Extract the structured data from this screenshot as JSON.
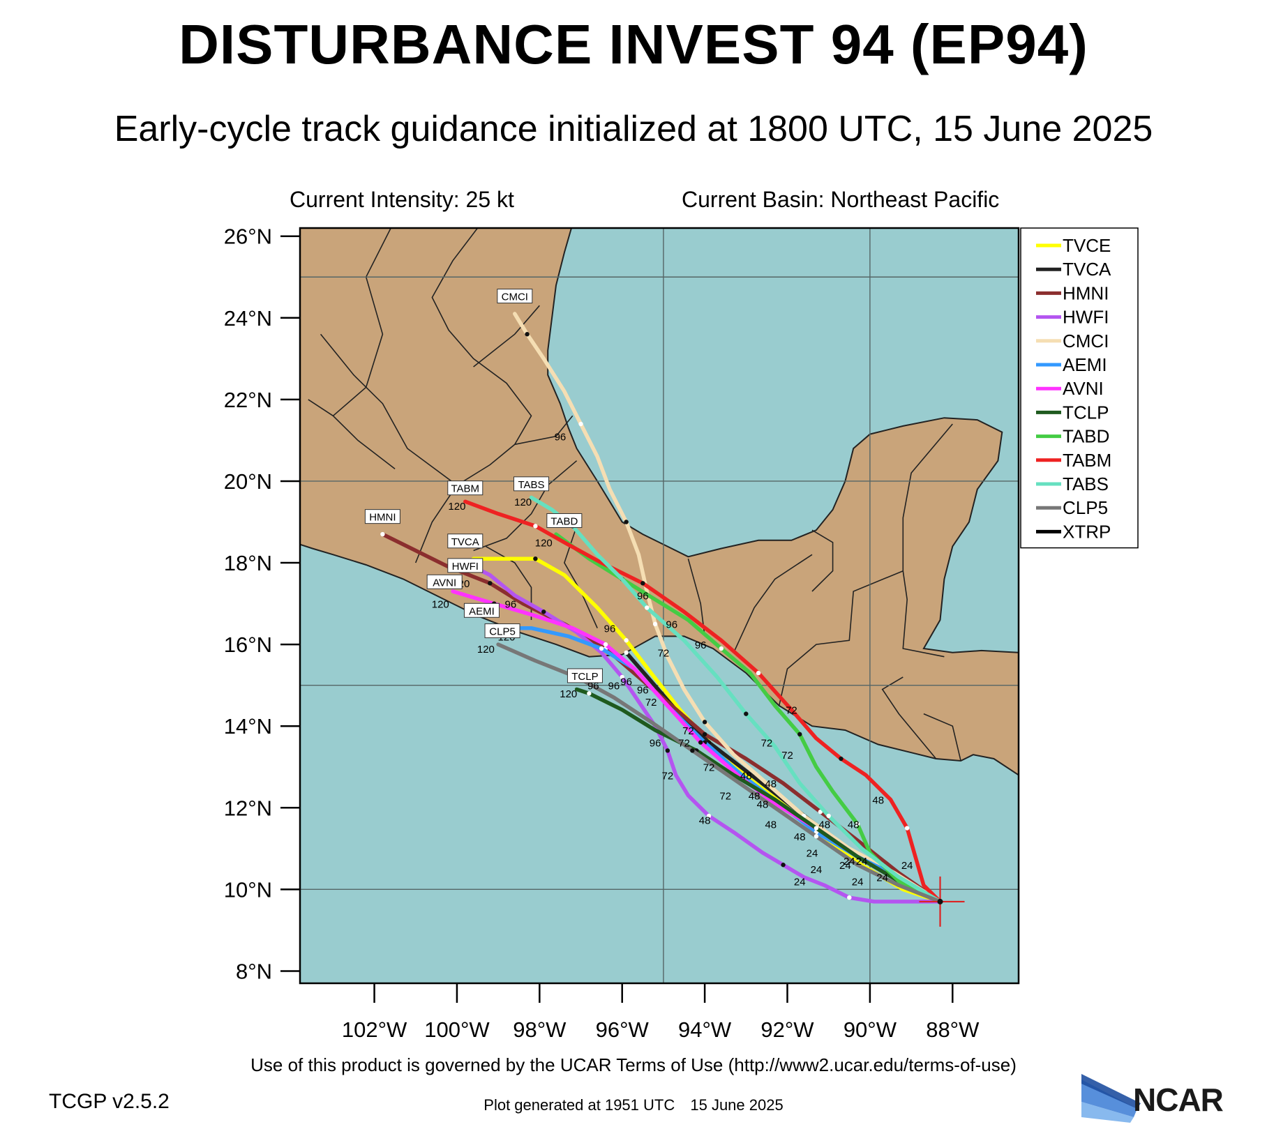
{
  "title": "DISTURBANCE INVEST 94 (EP94)",
  "subtitle": "Early-cycle track guidance initialized at 1800 UTC, 15 June 2025",
  "current_intensity": "Current Intensity: 25 kt",
  "current_basin": "Current Basin: Northeast Pacific",
  "terms": "Use of this product is governed by the UCAR Terms of Use (http://www2.ucar.edu/terms-of-use)",
  "version": "TCGP v2.5.2",
  "generated_time": "Plot generated at 1951 UTC",
  "generated_date": "15 June 2025",
  "logo_text": "NCAR",
  "colors": {
    "ocean": "#99cccf",
    "land": "#c9a47a",
    "border": "#222222",
    "grid": "#556666"
  },
  "axes": {
    "lon_min": -103.8,
    "lon_max": -86.4,
    "lat_min": 7.7,
    "lat_max": 26.2,
    "x_ticks": [
      -102,
      -100,
      -98,
      -96,
      -94,
      -92,
      -90,
      -88
    ],
    "x_tick_labels": [
      "102°W",
      "100°W",
      "98°W",
      "96°W",
      "94°W",
      "92°W",
      "90°W",
      "88°W"
    ],
    "y_ticks": [
      8,
      10,
      12,
      14,
      16,
      18,
      20,
      22,
      24,
      26
    ],
    "y_tick_labels": [
      "8°N",
      "10°N",
      "12°N",
      "14°N",
      "16°N",
      "18°N",
      "20°N",
      "22°N",
      "24°N",
      "26°N"
    ],
    "grid_lons": [
      -95,
      -90
    ],
    "grid_lats": [
      10,
      15,
      20,
      25
    ]
  },
  "legend": [
    {
      "label": "TVCE",
      "color": "#ffff00"
    },
    {
      "label": "TVCA",
      "color": "#222222"
    },
    {
      "label": "HMNI",
      "color": "#8b2e2e"
    },
    {
      "label": "HWFI",
      "color": "#b455f0"
    },
    {
      "label": "CMCI",
      "color": "#f5deb3"
    },
    {
      "label": "AEMI",
      "color": "#3399ff"
    },
    {
      "label": "AVNI",
      "color": "#ff33ff"
    },
    {
      "label": "TCLP",
      "color": "#1e5a1e"
    },
    {
      "label": "TABD",
      "color": "#44cc44"
    },
    {
      "label": "TABM",
      "color": "#ee2222"
    },
    {
      "label": "TABS",
      "color": "#66e0c0"
    },
    {
      "label": "CLP5",
      "color": "#777777"
    },
    {
      "label": "XTRP",
      "color": "#000000"
    }
  ],
  "initial_position": {
    "lon": -88.3,
    "lat": 9.7
  },
  "chart_data": {
    "type": "map",
    "tracks": [
      {
        "name": "TVCE",
        "color": "#ffff00",
        "points": [
          [
            -88.3,
            9.7
          ],
          [
            -89.2,
            10.0
          ],
          [
            -90.2,
            10.6
          ],
          [
            -91.2,
            11.3
          ],
          [
            -92.0,
            12.0
          ],
          [
            -92.9,
            12.7
          ],
          [
            -93.8,
            13.5
          ],
          [
            -94.6,
            14.4
          ],
          [
            -95.3,
            15.3
          ],
          [
            -95.9,
            16.1
          ],
          [
            -96.6,
            16.9
          ],
          [
            -97.4,
            17.7
          ],
          [
            -98.1,
            18.1
          ],
          [
            -99.6,
            18.1
          ]
        ]
      },
      {
        "name": "TVCA",
        "color": "#222222",
        "points": [
          [
            -88.3,
            9.7
          ],
          [
            -89.3,
            10.2
          ],
          [
            -90.3,
            10.8
          ],
          [
            -91.2,
            11.5
          ],
          [
            -92.1,
            12.2
          ],
          [
            -93.0,
            12.9
          ],
          [
            -93.9,
            13.6
          ],
          [
            -94.7,
            14.4
          ],
          [
            -95.3,
            15.1
          ],
          [
            -95.9,
            15.8
          ]
        ]
      },
      {
        "name": "HMNI",
        "color": "#8b2e2e",
        "points": [
          [
            -88.3,
            9.7
          ],
          [
            -89.3,
            10.4
          ],
          [
            -90.3,
            11.2
          ],
          [
            -91.2,
            11.9
          ],
          [
            -92.1,
            12.6
          ],
          [
            -93.0,
            13.2
          ],
          [
            -94.0,
            13.8
          ],
          [
            -94.8,
            14.5
          ],
          [
            -95.6,
            15.2
          ],
          [
            -96.4,
            15.9
          ],
          [
            -97.4,
            16.5
          ],
          [
            -98.4,
            17.0
          ],
          [
            -99.2,
            17.5
          ],
          [
            -100.2,
            17.9
          ],
          [
            -101.2,
            18.4
          ],
          [
            -101.8,
            18.7
          ]
        ]
      },
      {
        "name": "HWFI",
        "color": "#b455f0",
        "points": [
          [
            -88.3,
            9.7
          ],
          [
            -89.0,
            9.7
          ],
          [
            -89.9,
            9.7
          ],
          [
            -90.5,
            9.8
          ],
          [
            -91.1,
            10.1
          ],
          [
            -91.6,
            10.3
          ],
          [
            -92.1,
            10.6
          ],
          [
            -92.6,
            10.9
          ],
          [
            -93.3,
            11.4
          ],
          [
            -93.9,
            11.8
          ],
          [
            -94.4,
            12.3
          ],
          [
            -94.7,
            12.8
          ],
          [
            -94.9,
            13.4
          ],
          [
            -95.2,
            14.0
          ],
          [
            -95.6,
            14.6
          ],
          [
            -96.0,
            15.2
          ],
          [
            -96.5,
            15.8
          ],
          [
            -97.1,
            16.3
          ],
          [
            -97.9,
            16.8
          ],
          [
            -98.6,
            17.2
          ],
          [
            -99.2,
            17.7
          ],
          [
            -99.8,
            18.0
          ]
        ]
      },
      {
        "name": "CMCI",
        "color": "#f5deb3",
        "points": [
          [
            -88.3,
            9.7
          ],
          [
            -89.4,
            10.4
          ],
          [
            -90.5,
            11.0
          ],
          [
            -91.6,
            11.8
          ],
          [
            -92.5,
            12.6
          ],
          [
            -93.3,
            13.3
          ],
          [
            -94.0,
            14.1
          ],
          [
            -94.5,
            14.9
          ],
          [
            -94.9,
            15.7
          ],
          [
            -95.2,
            16.5
          ],
          [
            -95.4,
            17.3
          ],
          [
            -95.6,
            18.2
          ],
          [
            -95.9,
            19.0
          ],
          [
            -96.3,
            19.8
          ],
          [
            -96.6,
            20.6
          ],
          [
            -97.0,
            21.4
          ],
          [
            -97.4,
            22.2
          ],
          [
            -97.9,
            23.0
          ],
          [
            -98.3,
            23.6
          ],
          [
            -98.6,
            24.1
          ]
        ]
      },
      {
        "name": "AEMI",
        "color": "#3399ff",
        "points": [
          [
            -88.3,
            9.7
          ],
          [
            -89.3,
            10.3
          ],
          [
            -90.3,
            10.8
          ],
          [
            -91.3,
            11.4
          ],
          [
            -92.2,
            12.1
          ],
          [
            -93.1,
            12.8
          ],
          [
            -94.0,
            13.6
          ],
          [
            -94.9,
            14.5
          ],
          [
            -95.7,
            15.4
          ],
          [
            -96.5,
            15.9
          ],
          [
            -97.3,
            16.2
          ],
          [
            -98.2,
            16.4
          ],
          [
            -98.9,
            16.4
          ]
        ]
      },
      {
        "name": "AVNI",
        "color": "#ff33ff",
        "points": [
          [
            -88.3,
            9.7
          ],
          [
            -89.3,
            10.2
          ],
          [
            -90.3,
            10.8
          ],
          [
            -91.3,
            11.5
          ],
          [
            -92.3,
            12.1
          ],
          [
            -93.2,
            12.8
          ],
          [
            -94.1,
            13.6
          ],
          [
            -94.9,
            14.5
          ],
          [
            -95.7,
            15.4
          ],
          [
            -96.4,
            16.0
          ],
          [
            -97.2,
            16.4
          ],
          [
            -98.1,
            16.7
          ],
          [
            -99.1,
            17.0
          ],
          [
            -100.1,
            17.3
          ]
        ]
      },
      {
        "name": "TCLP",
        "color": "#1e5a1e",
        "points": [
          [
            -88.3,
            9.7
          ],
          [
            -89.3,
            10.2
          ],
          [
            -90.3,
            10.8
          ],
          [
            -91.3,
            11.5
          ],
          [
            -92.3,
            12.2
          ],
          [
            -93.3,
            12.8
          ],
          [
            -94.2,
            13.4
          ],
          [
            -95.2,
            13.9
          ],
          [
            -96.0,
            14.4
          ],
          [
            -96.8,
            14.8
          ],
          [
            -97.1,
            14.9
          ]
        ]
      },
      {
        "name": "TABD",
        "color": "#44cc44",
        "points": [
          [
            -88.3,
            9.7
          ],
          [
            -89.3,
            10.2
          ],
          [
            -90.0,
            10.9
          ],
          [
            -90.3,
            11.6
          ],
          [
            -90.9,
            12.4
          ],
          [
            -91.3,
            13.0
          ],
          [
            -91.7,
            13.8
          ],
          [
            -92.3,
            14.5
          ],
          [
            -92.9,
            15.3
          ],
          [
            -93.6,
            15.9
          ],
          [
            -94.4,
            16.6
          ],
          [
            -95.2,
            17.1
          ],
          [
            -96.0,
            17.6
          ],
          [
            -96.8,
            18.1
          ],
          [
            -97.6,
            18.7
          ]
        ]
      },
      {
        "name": "TABM",
        "color": "#ee2222",
        "points": [
          [
            -88.3,
            9.7
          ],
          [
            -88.7,
            10.1
          ],
          [
            -88.9,
            10.8
          ],
          [
            -89.1,
            11.5
          ],
          [
            -89.5,
            12.2
          ],
          [
            -90.1,
            12.8
          ],
          [
            -90.7,
            13.2
          ],
          [
            -91.3,
            13.7
          ],
          [
            -91.9,
            14.4
          ],
          [
            -92.7,
            15.3
          ],
          [
            -93.6,
            16.1
          ],
          [
            -94.5,
            16.8
          ],
          [
            -95.5,
            17.5
          ],
          [
            -96.5,
            18.0
          ],
          [
            -97.4,
            18.5
          ],
          [
            -98.1,
            18.9
          ],
          [
            -99.0,
            19.2
          ],
          [
            -99.8,
            19.5
          ]
        ]
      },
      {
        "name": "TABS",
        "color": "#66e0c0",
        "points": [
          [
            -88.3,
            9.7
          ],
          [
            -89.3,
            10.3
          ],
          [
            -90.2,
            11.0
          ],
          [
            -91.0,
            11.8
          ],
          [
            -91.7,
            12.6
          ],
          [
            -92.3,
            13.5
          ],
          [
            -93.0,
            14.3
          ],
          [
            -93.7,
            15.2
          ],
          [
            -94.5,
            16.1
          ],
          [
            -95.4,
            16.9
          ],
          [
            -96.0,
            17.6
          ],
          [
            -96.6,
            18.2
          ],
          [
            -97.2,
            18.9
          ],
          [
            -97.7,
            19.3
          ],
          [
            -98.2,
            19.6
          ]
        ]
      },
      {
        "name": "CLP5",
        "color": "#777777",
        "points": [
          [
            -88.3,
            9.7
          ],
          [
            -89.3,
            10.1
          ],
          [
            -90.3,
            10.6
          ],
          [
            -91.3,
            11.3
          ],
          [
            -92.3,
            12.0
          ],
          [
            -93.3,
            12.7
          ],
          [
            -94.3,
            13.4
          ],
          [
            -95.3,
            14.1
          ],
          [
            -96.2,
            14.7
          ],
          [
            -97.1,
            15.2
          ],
          [
            -98.1,
            15.6
          ],
          [
            -99.0,
            16.0
          ]
        ]
      }
    ],
    "hour_labels": [
      {
        "text": "24",
        "lon": -91.7,
        "lat": 10.1
      },
      {
        "text": "24",
        "lon": -91.3,
        "lat": 10.4
      },
      {
        "text": "24",
        "lon": -90.3,
        "lat": 10.1
      },
      {
        "text": "24",
        "lon": -90.6,
        "lat": 10.5
      },
      {
        "text": "24",
        "lon": -90.5,
        "lat": 10.6
      },
      {
        "text": "24",
        "lon": -90.2,
        "lat": 10.6
      },
      {
        "text": "24",
        "lon": -91.4,
        "lat": 10.8
      },
      {
        "text": "24",
        "lon": -89.7,
        "lat": 10.2
      },
      {
        "text": "24",
        "lon": -89.1,
        "lat": 10.5
      },
      {
        "text": "48",
        "lon": -94.0,
        "lat": 11.6
      },
      {
        "text": "48",
        "lon": -92.4,
        "lat": 11.5
      },
      {
        "text": "48",
        "lon": -91.7,
        "lat": 11.2
      },
      {
        "text": "48",
        "lon": -91.1,
        "lat": 11.5
      },
      {
        "text": "48",
        "lon": -90.4,
        "lat": 11.5
      },
      {
        "text": "48",
        "lon": -89.8,
        "lat": 12.1
      },
      {
        "text": "48",
        "lon": -92.8,
        "lat": 12.2
      },
      {
        "text": "48",
        "lon": -92.6,
        "lat": 12.0
      },
      {
        "text": "48",
        "lon": -93.0,
        "lat": 12.7
      },
      {
        "text": "48",
        "lon": -92.4,
        "lat": 12.5
      },
      {
        "text": "72",
        "lon": -94.9,
        "lat": 12.7
      },
      {
        "text": "72",
        "lon": -93.5,
        "lat": 12.2
      },
      {
        "text": "72",
        "lon": -93.9,
        "lat": 12.9
      },
      {
        "text": "72",
        "lon": -94.5,
        "lat": 13.5
      },
      {
        "text": "72",
        "lon": -94.4,
        "lat": 13.8
      },
      {
        "text": "72",
        "lon": -92.5,
        "lat": 13.5
      },
      {
        "text": "72",
        "lon": -92.0,
        "lat": 13.2
      },
      {
        "text": "72",
        "lon": -91.9,
        "lat": 14.3
      },
      {
        "text": "72",
        "lon": -95.0,
        "lat": 15.7
      },
      {
        "text": "72",
        "lon": -95.3,
        "lat": 14.5
      },
      {
        "text": "96",
        "lon": -95.2,
        "lat": 13.5
      },
      {
        "text": "96",
        "lon": -96.2,
        "lat": 14.9
      },
      {
        "text": "96",
        "lon": -95.9,
        "lat": 15.0
      },
      {
        "text": "96",
        "lon": -95.5,
        "lat": 14.8
      },
      {
        "text": "96",
        "lon": -96.7,
        "lat": 14.9
      },
      {
        "text": "96",
        "lon": -96.3,
        "lat": 16.3
      },
      {
        "text": "96",
        "lon": -98.7,
        "lat": 16.9
      },
      {
        "text": "96",
        "lon": -94.1,
        "lat": 15.9
      },
      {
        "text": "96",
        "lon": -94.8,
        "lat": 16.4
      },
      {
        "text": "96",
        "lon": -95.5,
        "lat": 17.1
      },
      {
        "text": "96",
        "lon": -97.5,
        "lat": 21.0
      },
      {
        "text": "120",
        "lon": -98.8,
        "lat": 16.1
      },
      {
        "text": "120",
        "lon": -99.3,
        "lat": 15.8
      },
      {
        "text": "120",
        "lon": -100.4,
        "lat": 16.9
      },
      {
        "text": "120",
        "lon": -99.9,
        "lat": 17.4
      },
      {
        "text": "120",
        "lon": -99.9,
        "lat": 17.8
      },
      {
        "text": "120",
        "lon": -100.0,
        "lat": 19.3
      },
      {
        "text": "120",
        "lon": -98.4,
        "lat": 19.4
      },
      {
        "text": "120",
        "lon": -97.9,
        "lat": 18.4
      },
      {
        "text": "120",
        "lon": -97.3,
        "lat": 14.7
      }
    ],
    "end_labels": [
      {
        "text": "CMCI",
        "lon": -98.6,
        "lat": 24.5
      },
      {
        "text": "TABM",
        "lon": -99.8,
        "lat": 19.8
      },
      {
        "text": "TABS",
        "lon": -98.2,
        "lat": 19.9
      },
      {
        "text": "TABD",
        "lon": -97.4,
        "lat": 19.0
      },
      {
        "text": "HMNI",
        "lon": -101.8,
        "lat": 19.1
      },
      {
        "text": "TVCA",
        "lon": -99.8,
        "lat": 18.5
      },
      {
        "text": "HWFI",
        "lon": -99.8,
        "lat": 17.9
      },
      {
        "text": "AVNI",
        "lon": -100.3,
        "lat": 17.5
      },
      {
        "text": "AEMI",
        "lon": -99.4,
        "lat": 16.8
      },
      {
        "text": "CLP5",
        "lon": -98.9,
        "lat": 16.3
      },
      {
        "text": "TCLP",
        "lon": -96.9,
        "lat": 15.2
      }
    ]
  }
}
